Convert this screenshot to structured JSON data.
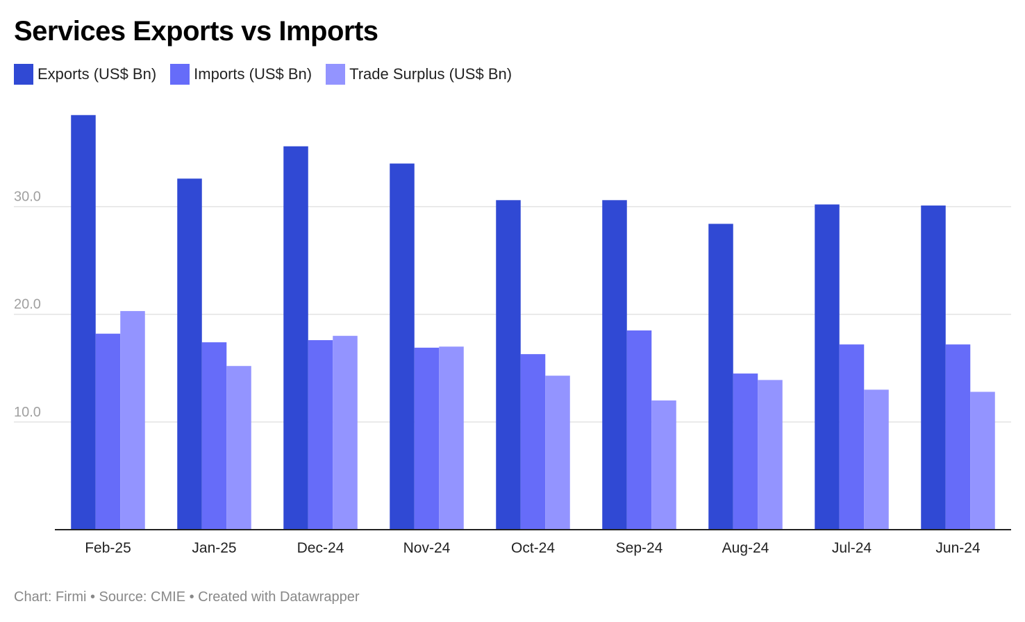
{
  "header": {
    "title": "Services Exports vs Imports"
  },
  "legend": {
    "items": [
      {
        "label": "Exports (US$ Bn)",
        "color": "#3049D4"
      },
      {
        "label": "Imports (US$ Bn)",
        "color": "#666CF9"
      },
      {
        "label": "Trade Surplus (US$ Bn)",
        "color": "#9394FF"
      }
    ]
  },
  "footer": {
    "text": "Chart: Firmi • Source: CMIE • Created with Datawrapper"
  },
  "chart_data": {
    "type": "bar",
    "title": "Services Exports vs Imports",
    "xlabel": "",
    "ylabel": "",
    "ylim": [
      0,
      39
    ],
    "yticks": [
      10,
      20,
      30
    ],
    "ytick_labels": [
      "10.0",
      "20.0",
      "30.0"
    ],
    "grid": true,
    "legend_position": "top-left",
    "categories": [
      "Feb-25",
      "Jan-25",
      "Dec-24",
      "Nov-24",
      "Oct-24",
      "Sep-24",
      "Aug-24",
      "Jul-24",
      "Jun-24"
    ],
    "series": [
      {
        "name": "Exports (US$ Bn)",
        "color": "#3049D4",
        "values": [
          38.5,
          32.6,
          35.6,
          34.0,
          30.6,
          30.6,
          28.4,
          30.2,
          30.1
        ]
      },
      {
        "name": "Imports (US$ Bn)",
        "color": "#666CF9",
        "values": [
          18.2,
          17.4,
          17.6,
          16.9,
          16.3,
          18.5,
          14.5,
          17.2,
          17.2
        ]
      },
      {
        "name": "Trade Surplus (US$ Bn)",
        "color": "#9394FF",
        "values": [
          20.3,
          15.2,
          18.0,
          17.0,
          14.3,
          12.0,
          13.9,
          13.0,
          12.8
        ]
      }
    ]
  }
}
